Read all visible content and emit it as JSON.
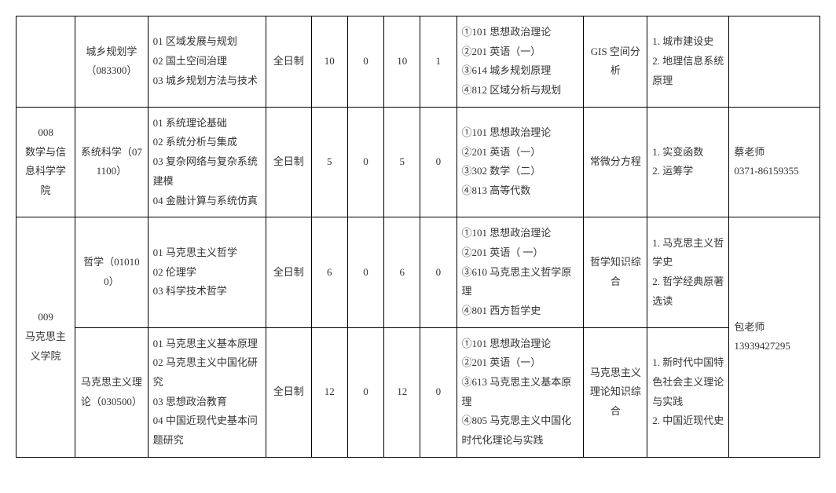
{
  "colors": {
    "border": "#000000",
    "text": "#333333",
    "background": "#ffffff"
  },
  "typography": {
    "font_family": "SimSun",
    "font_size_pt": 10,
    "line_height": 1.9
  },
  "columns": [
    {
      "key": "dept",
      "width_pct": 6.5,
      "align": "center"
    },
    {
      "key": "major",
      "width_pct": 8,
      "align": "center"
    },
    {
      "key": "directions",
      "width_pct": 13,
      "align": "left"
    },
    {
      "key": "mode",
      "width_pct": 5,
      "align": "center"
    },
    {
      "key": "n1",
      "width_pct": 4,
      "align": "center"
    },
    {
      "key": "n2",
      "width_pct": 4,
      "align": "center"
    },
    {
      "key": "n3",
      "width_pct": 4,
      "align": "center"
    },
    {
      "key": "n4",
      "width_pct": 4,
      "align": "center"
    },
    {
      "key": "exam",
      "width_pct": 14,
      "align": "left"
    },
    {
      "key": "retest",
      "width_pct": 7,
      "align": "center"
    },
    {
      "key": "refs",
      "width_pct": 9,
      "align": "left"
    },
    {
      "key": "contact",
      "width_pct": 10,
      "align": "left"
    }
  ],
  "rows": [
    {
      "dept": "",
      "dept_rowspan": 1,
      "major": "城乡规划学（083300）",
      "directions": "01 区域发展与规划\n02 国土空间治理\n03 城乡规划方法与技术",
      "mode": "全日制",
      "n1": "10",
      "n2": "0",
      "n3": "10",
      "n4": "1",
      "exam": "①101 思想政治理论\n②201 英语（一）\n③614 城乡规划原理\n④812 区域分析与规划",
      "retest": "GIS 空间分析",
      "refs": "1. 城市建设史\n2. 地理信息系统原理",
      "contact": "",
      "contact_rowspan": 1
    },
    {
      "dept": "008\n数学与信息科学学院",
      "dept_rowspan": 1,
      "major": "系统科学（071100）",
      "directions": "01 系统理论基础\n02 系统分析与集成\n03 复杂网络与复杂系统建模\n04 金融计算与系统仿真",
      "mode": "全日制",
      "n1": "5",
      "n2": "0",
      "n3": "5",
      "n4": "0",
      "exam": "①101 思想政治理论\n②201 英语（一）\n③302 数学（二）\n④813 高等代数",
      "retest": "常微分方程",
      "refs": "1. 实变函数\n2. 运筹学",
      "contact": "蔡老师\n0371-86159355",
      "contact_rowspan": 1
    },
    {
      "dept": "009\n马克思主义学院",
      "dept_rowspan": 2,
      "major": "哲学（010100）",
      "directions": "01 马克思主义哲学\n02 伦理学\n03 科学技术哲学",
      "mode": "全日制",
      "n1": "6",
      "n2": "0",
      "n3": "6",
      "n4": "0",
      "exam": "①101 思想政治理论\n②201 英语（ 一）\n③610 马克思主义哲学原理\n④801 西方哲学史",
      "retest": "哲学知识综合",
      "refs": "1. 马克思主义哲学史\n2. 哲学经典原著选读",
      "contact": "包老师\n13939427295",
      "contact_rowspan": 2
    },
    {
      "major": "马克思主义理论（030500）",
      "directions": "01 马克思主义基本原理\n02 马克思主义中国化研究\n03 思想政治教育\n04 中国近现代史基本问题研究",
      "mode": "全日制",
      "n1": "12",
      "n2": "0",
      "n3": "12",
      "n4": "0",
      "exam": "①101 思想政治理论\n②201 英语（一）\n③613 马克思主义基本原理\n④805 马克思主义中国化时代化理论与实践",
      "retest": "马克思主义理论知识综合",
      "refs": "1. 新时代中国特色社会主义理论与实践\n2. 中国近现代史"
    }
  ]
}
